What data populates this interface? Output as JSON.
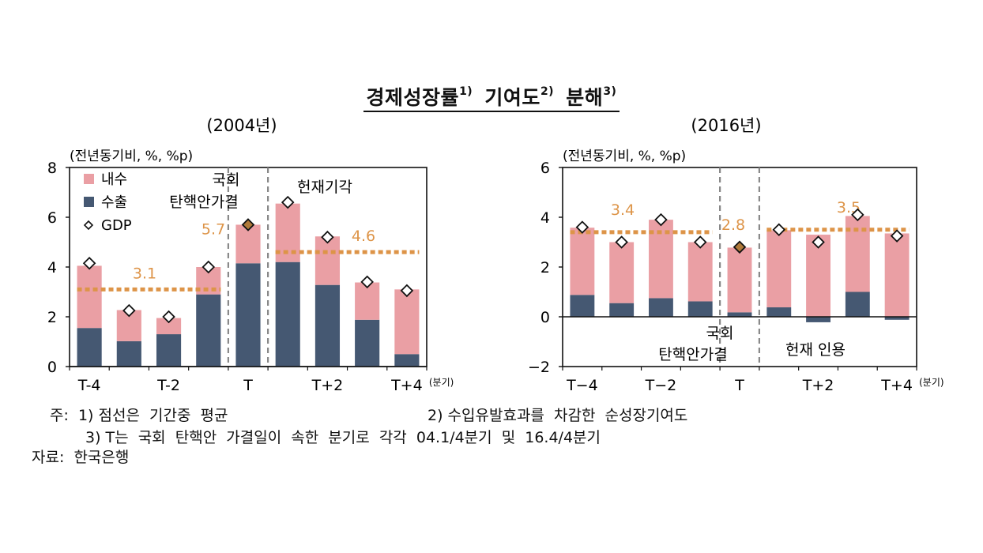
{
  "header": {
    "title": "경제성장률",
    "title_sup1": "1)",
    "title_mid": "기여도",
    "title_sup2": "2)",
    "title_end": "분해",
    "title_sup3": "3)"
  },
  "legend": {
    "domestic": "내수",
    "export": "수출",
    "gdp": "GDP"
  },
  "colors": {
    "domestic": "#ea9fa4",
    "export": "#455872",
    "avg_line": "#dd9448",
    "avg_label": "#dd9448",
    "vline": "#888888"
  },
  "chart_data": [
    {
      "type": "bar",
      "subtitle": "(2004년)",
      "unit_label": "(전년동기비, %, %p)",
      "ylim": [
        0,
        8
      ],
      "yticks": [
        "8",
        "6",
        "4",
        "2",
        "0"
      ],
      "categories": [
        "T-4",
        "T-3",
        "T-2",
        "T-1",
        "T",
        "T+1",
        "T+2",
        "T+3",
        "T+4"
      ],
      "xtick_labels": [
        "T-4",
        "",
        "T-2",
        "",
        "T",
        "",
        "T+2",
        "",
        "T+4"
      ],
      "xtick_suffix": "(분기)",
      "series": [
        {
          "name": "내수",
          "values": [
            2.5,
            1.25,
            0.65,
            1.1,
            1.55,
            2.35,
            1.95,
            1.5,
            2.6
          ]
        },
        {
          "name": "수출",
          "values": [
            1.55,
            1.02,
            1.3,
            2.9,
            4.15,
            4.2,
            3.28,
            1.88,
            0.5
          ]
        }
      ],
      "gdp": [
        4.15,
        2.25,
        2.0,
        4.0,
        5.7,
        6.6,
        5.2,
        3.4,
        3.05
      ],
      "averages": [
        {
          "from": "T-4",
          "to": "T-1",
          "value": 3.1,
          "label": "3.1"
        },
        {
          "from": "T+1",
          "to": "T+4",
          "value": 4.6,
          "label": "4.6"
        }
      ],
      "value_annotations": [
        {
          "at": "T",
          "label": "5.7"
        }
      ],
      "events": [
        {
          "after": "T-1",
          "text": [
            "국회",
            "탄핵안가결"
          ],
          "placement": "top-left"
        },
        {
          "after": "T",
          "text": [
            "헌재기각"
          ],
          "placement": "top-right"
        }
      ],
      "legend_placement": "top-left"
    },
    {
      "type": "bar",
      "subtitle": "(2016년)",
      "unit_label": "(전년동기비, %, %p)",
      "ylim": [
        -2,
        6
      ],
      "yticks": [
        "6",
        "4",
        "2",
        "0",
        "−2"
      ],
      "categories": [
        "T-4",
        "T-3",
        "T-2",
        "T-1",
        "T",
        "T+1",
        "T+2",
        "T+3",
        "T+4"
      ],
      "xtick_labels": [
        "T−4",
        "",
        "T−2",
        "",
        "T",
        "",
        "T+2",
        "",
        "T+4"
      ],
      "xtick_suffix": "(분기)",
      "series": [
        {
          "name": "내수",
          "values": [
            2.7,
            2.45,
            3.15,
            2.38,
            2.6,
            3.1,
            3.3,
            3.05,
            3.35
          ]
        },
        {
          "name": "수출",
          "values": [
            0.88,
            0.55,
            0.75,
            0.62,
            0.18,
            0.38,
            -0.22,
            1.0,
            -0.12
          ]
        }
      ],
      "gdp": [
        3.6,
        3.0,
        3.9,
        3.0,
        2.8,
        3.5,
        3.0,
        4.1,
        3.25
      ],
      "averages": [
        {
          "from": "T-4",
          "to": "T-1",
          "value": 3.4,
          "label": "3.4"
        },
        {
          "from": "T+1",
          "to": "T+4",
          "value": 3.5,
          "label": "3.5"
        }
      ],
      "value_annotations": [
        {
          "at": "T",
          "label": "2.8"
        }
      ],
      "events": [
        {
          "after": "T-1",
          "text": [
            "국회",
            "탄핵안가결"
          ],
          "placement": "bottom-left"
        },
        {
          "after": "T",
          "text": [
            "헌재 인용"
          ],
          "placement": "bottom-right"
        }
      ]
    }
  ],
  "notes": {
    "note1": "주:  1) 점선은  기간중  평균",
    "note2": "2) 수입유발효과를  차감한  순성장기여도",
    "note3": "3) T는  국회  탄핵안  가결일이  속한  분기로  각각  04.1/4분기  및  16.4/4분기",
    "source": "자료:  한국은행"
  }
}
